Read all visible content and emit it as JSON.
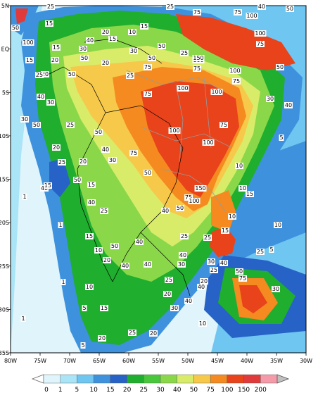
{
  "map": {
    "lon_range": [
      -80,
      -30
    ],
    "lat_range": [
      -35,
      5
    ],
    "x_ticks": [
      "80W",
      "75W",
      "70W",
      "65W",
      "60W",
      "55W",
      "50W",
      "45W",
      "40W",
      "35W",
      "30W"
    ],
    "y_ticks": [
      "5N",
      "EQ",
      "5S",
      "10S",
      "15S",
      "20S",
      "25S",
      "30S",
      "35S"
    ],
    "field_colors": {
      "lt1": "#dff4fb",
      "1to5": "#a9e4f7",
      "5to10": "#6fc6f0",
      "10to15": "#3e92dd",
      "15to20": "#2762c7",
      "20to25": "#1fae2e",
      "25to30": "#49c73c",
      "30to40": "#8ad84a",
      "40to50": "#d9ec6a",
      "50to75": "#f6c94a",
      "75to100": "#f48a20",
      "100to150": "#e8431a",
      "150to200": "#e03a3a",
      "gt200": "#f59aa8"
    },
    "contour_labels": [
      "1",
      "5",
      "10",
      "15",
      "20",
      "25",
      "30",
      "40",
      "50",
      "75",
      "100",
      "150"
    ]
  },
  "colorbar": {
    "values": [
      "0",
      "1",
      "5",
      "10",
      "15",
      "20",
      "25",
      "30",
      "40",
      "50",
      "75",
      "100",
      "150",
      "200"
    ],
    "colors": [
      "#dff4fb",
      "#a9e4f7",
      "#6fc6f0",
      "#3e92dd",
      "#2762c7",
      "#1fae2e",
      "#49c73c",
      "#8ad84a",
      "#d9ec6a",
      "#f6c94a",
      "#f48a20",
      "#e8431a",
      "#e03a3a",
      "#f59aa8",
      "#c0c0c0"
    ]
  }
}
